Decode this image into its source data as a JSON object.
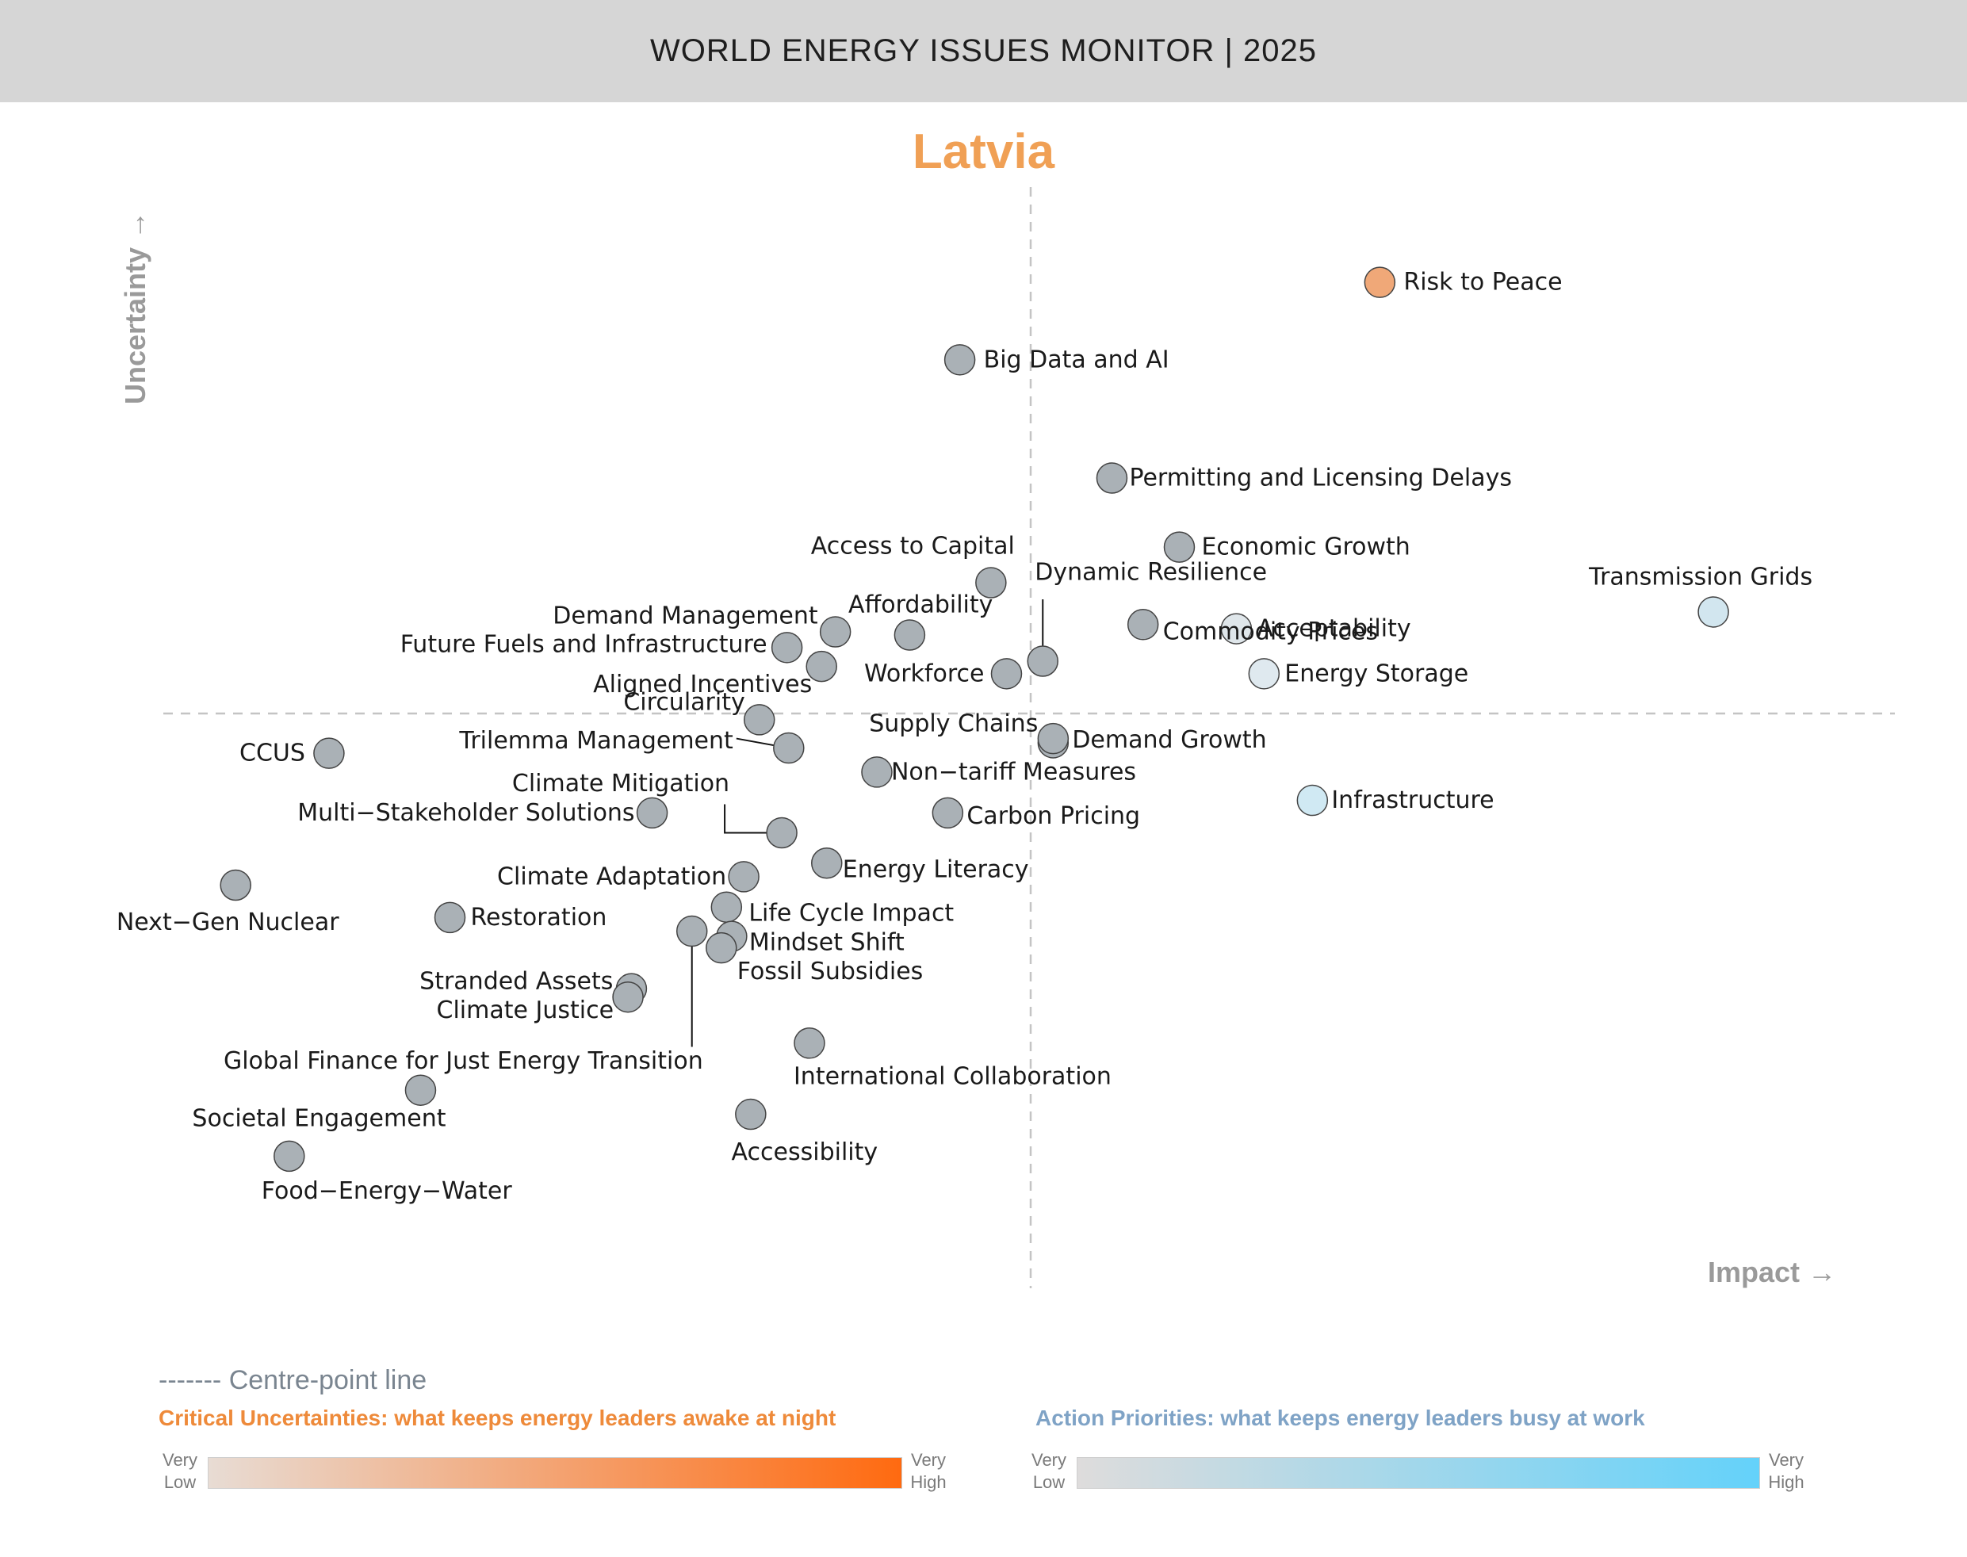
{
  "header": {
    "title": "WORLD ENERGY ISSUES MONITOR | 2025"
  },
  "country": "Latvia",
  "chart_data": {
    "type": "scatter",
    "title": "Latvia",
    "xlabel": "Impact →",
    "ylabel": "Uncertainty →",
    "xlim": [
      0,
      10
    ],
    "ylim": [
      0,
      10
    ],
    "centre_x": 5,
    "centre_y": 5,
    "centre_line_label": "------- Centre-point line",
    "points": [
      {
        "name": "Risk to Peace",
        "x": 7.02,
        "y": 9.12,
        "color": "#f0a878",
        "label": "Risk to Peace",
        "anchor": "start",
        "ldx": 30,
        "ldy": 0
      },
      {
        "name": "Big Data and AI",
        "x": 4.59,
        "y": 8.38,
        "color": "#aab1b6",
        "label": "Big Data and AI",
        "anchor": "start",
        "ldx": 30,
        "ldy": 0
      },
      {
        "name": "Permitting and Licensing Delays",
        "x": 5.47,
        "y": 7.25,
        "color": "#aab1b6",
        "label": "Permitting and Licensing Delays",
        "anchor": "start",
        "ldx": 22,
        "ldy": 0
      },
      {
        "name": "Economic Growth",
        "x": 5.86,
        "y": 6.59,
        "color": "#aab1b6",
        "label": "Economic Growth",
        "anchor": "start",
        "ldx": 28,
        "ldy": 0
      },
      {
        "name": "Access to Capital",
        "x": 4.77,
        "y": 6.25,
        "color": "#aab1b6",
        "label": "Access to Capital",
        "anchor": "end",
        "ldx": 30,
        "ldy": -46
      },
      {
        "name": "Dynamic Resilience",
        "x": 5.07,
        "y": 5.5,
        "color": "#aab1b6",
        "label": "Dynamic Resilience",
        "anchor": "start",
        "ldx": -10,
        "ldy": -112,
        "leader": [
          0,
          -78
        ]
      },
      {
        "name": "Transmission Grids",
        "x": 8.95,
        "y": 5.97,
        "color": "#d2e6ef",
        "label": "Transmission Grids",
        "anchor": "end",
        "ldx": 125,
        "ldy": -44
      },
      {
        "name": "Acceptability",
        "x": 6.19,
        "y": 5.81,
        "color": "#dfe6ea",
        "label": "Acceptability",
        "anchor": "start",
        "ldx": 26,
        "ldy": 0
      },
      {
        "name": "Commodity Prices",
        "x": 5.65,
        "y": 5.85,
        "color": "#aab1b6",
        "label": "Commodity Prices",
        "anchor": "start",
        "ldx": 25,
        "ldy": 9
      },
      {
        "name": "Affordability",
        "x": 4.3,
        "y": 5.75,
        "color": "#aab1b6",
        "label": "Affordability",
        "anchor": "end",
        "ldx": 105,
        "ldy": -38
      },
      {
        "name": "Demand Management",
        "x": 3.87,
        "y": 5.78,
        "color": "#aab1b6",
        "label": "Demand Management",
        "anchor": "end",
        "ldx": -22,
        "ldy": -20
      },
      {
        "name": "Future Fuels and Infrastructure",
        "x": 3.59,
        "y": 5.63,
        "color": "#aab1b6",
        "label": "Future Fuels and Infrastructure",
        "anchor": "end",
        "ldx": -25,
        "ldy": -4
      },
      {
        "name": "Aligned Incentives",
        "x": 3.79,
        "y": 5.45,
        "color": "#aab1b6",
        "label": "Aligned Incentives",
        "anchor": "end",
        "ldx": -12,
        "ldy": 23
      },
      {
        "name": "Workforce",
        "x": 4.86,
        "y": 5.38,
        "color": "#aab1b6",
        "label": "Workforce",
        "anchor": "end",
        "ldx": -28,
        "ldy": 0
      },
      {
        "name": "Energy Storage",
        "x": 6.35,
        "y": 5.38,
        "color": "#dfe9ef",
        "label": "Energy Storage",
        "anchor": "start",
        "ldx": 26,
        "ldy": 0
      },
      {
        "name": "Circularity",
        "x": 3.43,
        "y": 4.94,
        "color": "#aab1b6",
        "label": "Circularity",
        "anchor": "end",
        "ldx": -18,
        "ldy": -22
      },
      {
        "name": "Trilemma Management",
        "x": 3.6,
        "y": 4.67,
        "color": "#aab1b6",
        "label": "Trilemma Management",
        "anchor": "end",
        "ldx": -70,
        "ldy": -9,
        "leader": [
          -66,
          -12
        ]
      },
      {
        "name": "Supply Chains",
        "x": 5.13,
        "y": 4.72,
        "color": "#aab1b6",
        "label": "Supply Chains",
        "anchor": "end",
        "ldx": -19,
        "ldy": -24
      },
      {
        "name": "Demand Growth",
        "x": 5.13,
        "y": 4.76,
        "color": "#aab1b6",
        "label": "Demand Growth",
        "anchor": "start",
        "ldx": 24,
        "ldy": 2
      },
      {
        "name": "CCUS",
        "x": 0.94,
        "y": 4.62,
        "color": "#aab1b6",
        "label": "CCUS",
        "anchor": "end",
        "ldx": -30,
        "ldy": 0
      },
      {
        "name": "Non-tariff Measures",
        "x": 4.11,
        "y": 4.44,
        "color": "#aab1b6",
        "label": "Non−tariff Measures",
        "anchor": "start",
        "ldx": 18,
        "ldy": 0
      },
      {
        "name": "Climate Mitigation",
        "x": 3.56,
        "y": 3.86,
        "color": "#aab1b6",
        "label": "Climate Mitigation",
        "anchor": "end",
        "ldx": -66,
        "ldy": -62,
        "leader": [
          -72,
          0,
          -72,
          -36
        ]
      },
      {
        "name": "Multi-Stakeholder Solutions",
        "x": 2.81,
        "y": 4.05,
        "color": "#aab1b6",
        "label": "Multi−Stakeholder Solutions",
        "anchor": "end",
        "ldx": -22,
        "ldy": 0
      },
      {
        "name": "Carbon Pricing",
        "x": 4.52,
        "y": 4.05,
        "color": "#aab1b6",
        "label": "Carbon Pricing",
        "anchor": "start",
        "ldx": 24,
        "ldy": 4
      },
      {
        "name": "Infrastructure",
        "x": 6.63,
        "y": 4.17,
        "color": "#d0e9f3",
        "label": "Infrastructure",
        "anchor": "start",
        "ldx": 24,
        "ldy": 0
      },
      {
        "name": "Energy Literacy",
        "x": 3.82,
        "y": 3.57,
        "color": "#aab1b6",
        "label": "Energy Literacy",
        "anchor": "start",
        "ldx": 20,
        "ldy": 8
      },
      {
        "name": "Climate Adaptation",
        "x": 3.34,
        "y": 3.44,
        "color": "#aab1b6",
        "label": "Climate Adaptation",
        "anchor": "end",
        "ldx": -22,
        "ldy": 0
      },
      {
        "name": "Next-Gen Nuclear",
        "x": 0.4,
        "y": 3.36,
        "color": "#aab1b6",
        "label": "Next−Gen Nuclear",
        "anchor": "middle",
        "ldx": -10,
        "ldy": 47
      },
      {
        "name": "Restoration",
        "x": 1.64,
        "y": 3.05,
        "color": "#aab1b6",
        "label": "Restoration",
        "anchor": "start",
        "ldx": 26,
        "ldy": 0
      },
      {
        "name": "Life Cycle Impact",
        "x": 3.24,
        "y": 3.15,
        "color": "#aab1b6",
        "label": "Life Cycle Impact",
        "anchor": "start",
        "ldx": 28,
        "ldy": 8
      },
      {
        "name": "Global Finance for Just Energy Transition",
        "x": 3.04,
        "y": 2.92,
        "color": "#aab1b6",
        "label": "Global Finance for Just Energy Transition",
        "anchor": "end",
        "ldx": 14,
        "ldy": 164,
        "leader": [
          0,
          146
        ]
      },
      {
        "name": "Mindset Shift",
        "x": 3.27,
        "y": 2.87,
        "color": "#aab1b6",
        "label": "Mindset Shift",
        "anchor": "start",
        "ldx": 22,
        "ldy": 8
      },
      {
        "name": "Fossil Subsidies",
        "x": 3.21,
        "y": 2.76,
        "color": "#aab1b6",
        "label": "Fossil Subsidies",
        "anchor": "start",
        "ldx": 20,
        "ldy": 30
      },
      {
        "name": "Stranded Assets",
        "x": 2.69,
        "y": 2.37,
        "color": "#aab1b6",
        "label": "Stranded Assets",
        "anchor": "end",
        "ldx": -23,
        "ldy": -9
      },
      {
        "name": "Climate Justice",
        "x": 2.67,
        "y": 2.29,
        "color": "#aab1b6",
        "label": "Climate Justice",
        "anchor": "end",
        "ldx": -18,
        "ldy": 17
      },
      {
        "name": "International Collaboration",
        "x": 3.72,
        "y": 1.85,
        "color": "#aab1b6",
        "label": "International Collaboration",
        "anchor": "start",
        "ldx": -20,
        "ldy": 42
      },
      {
        "name": "Societal Engagement",
        "x": 1.47,
        "y": 1.4,
        "color": "#aab1b6",
        "label": "Societal Engagement",
        "anchor": "middle",
        "ldx": -128,
        "ldy": 36
      },
      {
        "name": "Accessibility",
        "x": 3.38,
        "y": 1.17,
        "color": "#aab1b6",
        "label": "Accessibility",
        "anchor": "middle",
        "ldx": 68,
        "ldy": 48
      },
      {
        "name": "Food-Energy-Water",
        "x": 0.71,
        "y": 0.77,
        "color": "#aab1b6",
        "label": "Food−Energy−Water",
        "anchor": "middle",
        "ldx": 123,
        "ldy": 44
      }
    ],
    "legend": {
      "critical": {
        "title": "Critical Uncertainties: what keeps energy leaders awake at night",
        "low": "Very Low",
        "high": "Very High",
        "color_low": "#e8dcd4",
        "color_high": "#ff6a10"
      },
      "action": {
        "title": "Action Priorities: what keeps energy leaders busy at work",
        "low": "Very Low",
        "high": "Very High",
        "color_low": "#dedcdc",
        "color_high": "#64d2fa"
      }
    }
  }
}
